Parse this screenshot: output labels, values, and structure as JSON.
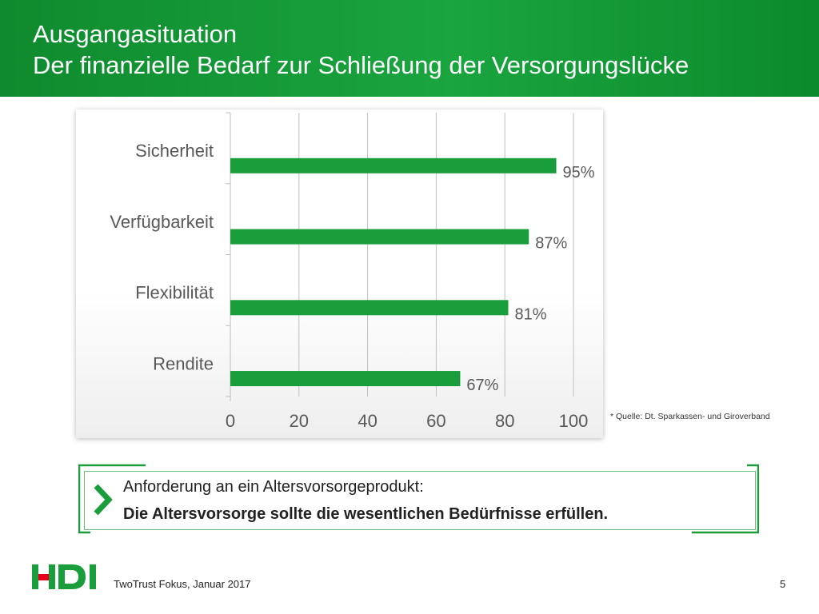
{
  "header": {
    "title_line1": "Ausgangasituation",
    "title_line2": "Der finanzielle Bedarf zur Schließung der Versorgungslücke"
  },
  "chart_data": {
    "type": "bar",
    "orientation": "horizontal",
    "categories": [
      "Sicherheit",
      "Verfügbarkeit",
      "Flexibilität",
      "Rendite"
    ],
    "values": [
      95,
      87,
      81,
      67
    ],
    "data_labels": [
      "95%",
      "87%",
      "81%",
      "67%"
    ],
    "xlim": [
      0,
      100
    ],
    "xticks": [
      0,
      20,
      40,
      60,
      80,
      100
    ],
    "grid": true,
    "bar_color": "#1a9e3c"
  },
  "source_note": "* Quelle: Dt. Sparkassen- und Giroverband",
  "requirement": {
    "line1": "Anforderung an ein Altersvorsorgeprodukt:",
    "line2": "Die Altersvorsorge sollte die wesentlichen Bedürfnisse erfüllen."
  },
  "footer": {
    "logo": "HDI",
    "text": "TwoTrust Fokus, Januar 2017",
    "page_number": "5"
  },
  "colors": {
    "brand_green": "#1a9e3c",
    "logo_red": "#e2001a"
  }
}
